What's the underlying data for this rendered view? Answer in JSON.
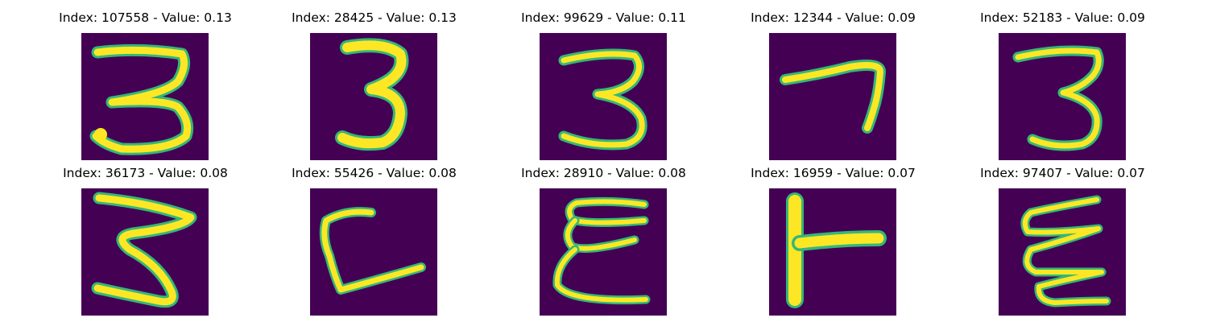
{
  "panels": [
    {
      "title": "Index: 107558 - Value: 0.13",
      "glyph": "3"
    },
    {
      "title": "Index: 28425 - Value: 0.13",
      "glyph": "3"
    },
    {
      "title": "Index: 99629 - Value: 0.11",
      "glyph": "3"
    },
    {
      "title": "Index: 12344 - Value: 0.09",
      "glyph": "7"
    },
    {
      "title": "Index: 52183 - Value: 0.09",
      "glyph": "3"
    },
    {
      "title": "Index: 36173 - Value: 0.08",
      "glyph": "3"
    },
    {
      "title": "Index: 55426 - Value: 0.08",
      "glyph": "L"
    },
    {
      "title": "Index: 28910 - Value: 0.08",
      "glyph": "E"
    },
    {
      "title": "Index: 16959 - Value: 0.07",
      "glyph": "T"
    },
    {
      "title": "Index: 97407 - Value: 0.07",
      "glyph": "E"
    }
  ],
  "colors": {
    "background": "#440154",
    "stroke_edge": "#35b779",
    "stroke_mid": "#8fd744",
    "stroke_core": "#fde725",
    "title_text": "#000000"
  }
}
